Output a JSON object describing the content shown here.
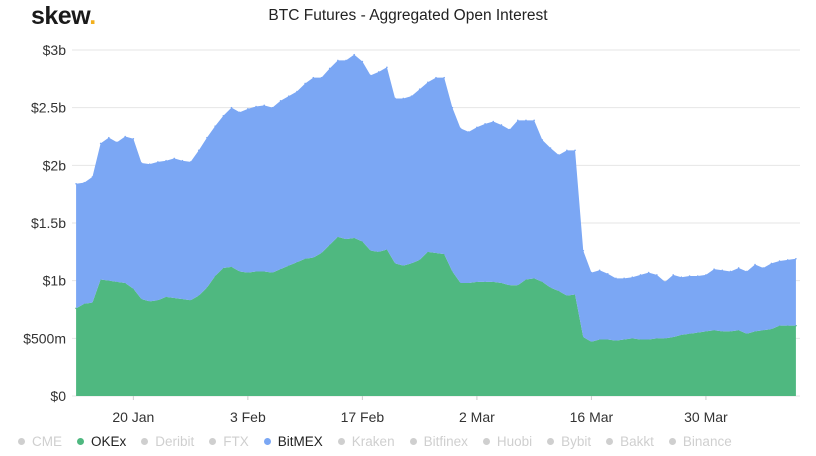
{
  "brand": {
    "name": "skew",
    "dot": ".",
    "dot_color": "#f2b01e"
  },
  "chart_data": {
    "type": "area",
    "stacked": true,
    "title": "BTC Futures - Aggregated Open Interest",
    "xlabel": "",
    "ylabel": "",
    "ylim": [
      0,
      3000
    ],
    "y_unit": "USD millions",
    "yticks": [
      0,
      500,
      1000,
      1500,
      2000,
      2500,
      3000
    ],
    "ytick_labels": [
      "$0",
      "$500m",
      "$1b",
      "$1.5b",
      "$2b",
      "$2.5b",
      "$3b"
    ],
    "xtick_labels": [
      "20 Jan",
      "3 Feb",
      "17 Feb",
      "2 Mar",
      "16 Mar",
      "30 Mar"
    ],
    "xtick_days": [
      7,
      21,
      35,
      49,
      63,
      77
    ],
    "x_range": [
      -0.5,
      88.5
    ],
    "grid": true,
    "legend_placement": "bottom",
    "x": [
      0,
      1,
      2,
      3,
      4,
      5,
      6,
      7,
      8,
      9,
      10,
      11,
      12,
      13,
      14,
      15,
      16,
      17,
      18,
      19,
      20,
      21,
      22,
      23,
      24,
      25,
      26,
      27,
      28,
      29,
      30,
      31,
      32,
      33,
      34,
      35,
      36,
      37,
      38,
      39,
      40,
      41,
      42,
      43,
      44,
      45,
      46,
      47,
      48,
      49,
      50,
      51,
      52,
      53,
      54,
      55,
      56,
      57,
      58,
      59,
      60,
      61,
      62,
      63,
      64,
      65,
      66,
      67,
      68,
      69,
      70,
      71,
      72,
      73,
      74,
      75,
      76,
      77,
      78,
      79,
      80,
      81,
      82,
      83,
      84,
      85,
      86,
      87,
      88
    ],
    "series": [
      {
        "name": "OKEx",
        "color": "#4fb880",
        "visible": true,
        "values": [
          760,
          800,
          810,
          1010,
          1000,
          990,
          980,
          930,
          840,
          820,
          830,
          860,
          850,
          840,
          830,
          870,
          940,
          1040,
          1110,
          1120,
          1080,
          1070,
          1080,
          1080,
          1070,
          1100,
          1130,
          1160,
          1190,
          1200,
          1240,
          1310,
          1380,
          1360,
          1370,
          1340,
          1260,
          1250,
          1270,
          1150,
          1130,
          1150,
          1180,
          1250,
          1240,
          1230,
          1080,
          980,
          980,
          990,
          990,
          990,
          980,
          960,
          960,
          1010,
          1020,
          990,
          940,
          910,
          870,
          880,
          510,
          470,
          490,
          490,
          480,
          490,
          500,
          490,
          490,
          500,
          500,
          510,
          530,
          540,
          550,
          560,
          570,
          560,
          560,
          570,
          540,
          560,
          570,
          580,
          610,
          610,
          610
        ]
      },
      {
        "name": "BitMEX",
        "color": "#7ba7f4",
        "visible": true,
        "values": [
          1080,
          1050,
          1090,
          1180,
          1240,
          1210,
          1270,
          1300,
          1180,
          1190,
          1200,
          1180,
          1210,
          1200,
          1200,
          1260,
          1300,
          1300,
          1320,
          1380,
          1380,
          1420,
          1430,
          1440,
          1430,
          1460,
          1470,
          1480,
          1520,
          1560,
          1520,
          1530,
          1530,
          1550,
          1590,
          1560,
          1520,
          1560,
          1580,
          1430,
          1450,
          1450,
          1480,
          1470,
          1520,
          1530,
          1420,
          1340,
          1310,
          1340,
          1370,
          1390,
          1370,
          1350,
          1430,
          1380,
          1370,
          1230,
          1210,
          1180,
          1260,
          1250,
          750,
          600,
          600,
          570,
          540,
          530,
          530,
          560,
          580,
          550,
          490,
          540,
          500,
          500,
          490,
          490,
          530,
          530,
          520,
          540,
          540,
          580,
          540,
          570,
          560,
          570,
          580
        ]
      }
    ],
    "legend": [
      {
        "name": "CME",
        "visible": false
      },
      {
        "name": "OKEx",
        "visible": true
      },
      {
        "name": "Deribit",
        "visible": false
      },
      {
        "name": "FTX",
        "visible": false
      },
      {
        "name": "BitMEX",
        "visible": true
      },
      {
        "name": "Kraken",
        "visible": false
      },
      {
        "name": "Bitfinex",
        "visible": false
      },
      {
        "name": "Huobi",
        "visible": false
      },
      {
        "name": "Bybit",
        "visible": false
      },
      {
        "name": "Bakkt",
        "visible": false
      },
      {
        "name": "Binance",
        "visible": false
      }
    ],
    "colors": {
      "OKEx": "#4fb880",
      "BitMEX": "#7ba7f4",
      "hidden": "#cfcfcf",
      "grid": "#e6e6e6",
      "axis_text": "#333333"
    }
  }
}
